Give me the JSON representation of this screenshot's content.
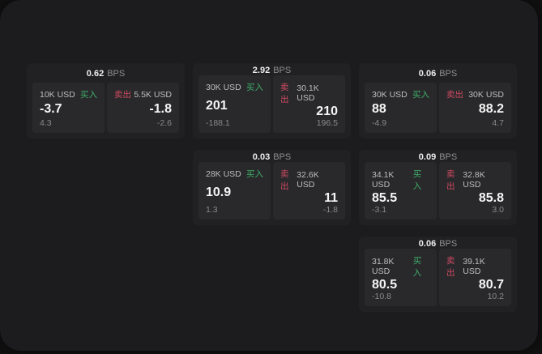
{
  "labels": {
    "bps_unit": "BPS",
    "buy": "买入",
    "sell": "卖出"
  },
  "colors": {
    "background": "#111112",
    "panel": "#1c1c1e",
    "card": "#212124",
    "subpanel": "#29292c",
    "buy_green": "#3fae68",
    "sell_red": "#cf4a60",
    "value_white": "#f5f5f5",
    "muted_gray": "#8a8a8c"
  },
  "cards": [
    {
      "bps": "0.62",
      "buy": {
        "amount": "10K USD",
        "value": "-3.7",
        "delta": "4.3"
      },
      "sell": {
        "amount": "5.5K USD",
        "value": "-1.8",
        "delta": "-2.6"
      }
    },
    {
      "bps": "2.92",
      "buy": {
        "amount": "30K USD",
        "value": "201",
        "delta": "-188.1"
      },
      "sell": {
        "amount": "30.1K USD",
        "value": "210",
        "delta": "196.5"
      }
    },
    {
      "bps": "0.06",
      "buy": {
        "amount": "30K USD",
        "value": "88",
        "delta": "-4.9"
      },
      "sell": {
        "amount": "30K USD",
        "value": "88.2",
        "delta": "4.7"
      }
    },
    {
      "bps": "0.03",
      "buy": {
        "amount": "28K USD",
        "value": "10.9",
        "delta": "1.3"
      },
      "sell": {
        "amount": "32.6K USD",
        "value": "11",
        "delta": "-1.8"
      }
    },
    {
      "bps": "0.09",
      "buy": {
        "amount": "34.1K USD",
        "value": "85.5",
        "delta": "-3.1"
      },
      "sell": {
        "amount": "32.8K USD",
        "value": "85.8",
        "delta": "3.0"
      }
    },
    {
      "bps": "0.06",
      "buy": {
        "amount": "31.8K USD",
        "value": "80.5",
        "delta": "-10.8"
      },
      "sell": {
        "amount": "39.1K USD",
        "value": "80.7",
        "delta": "10.2"
      }
    }
  ]
}
